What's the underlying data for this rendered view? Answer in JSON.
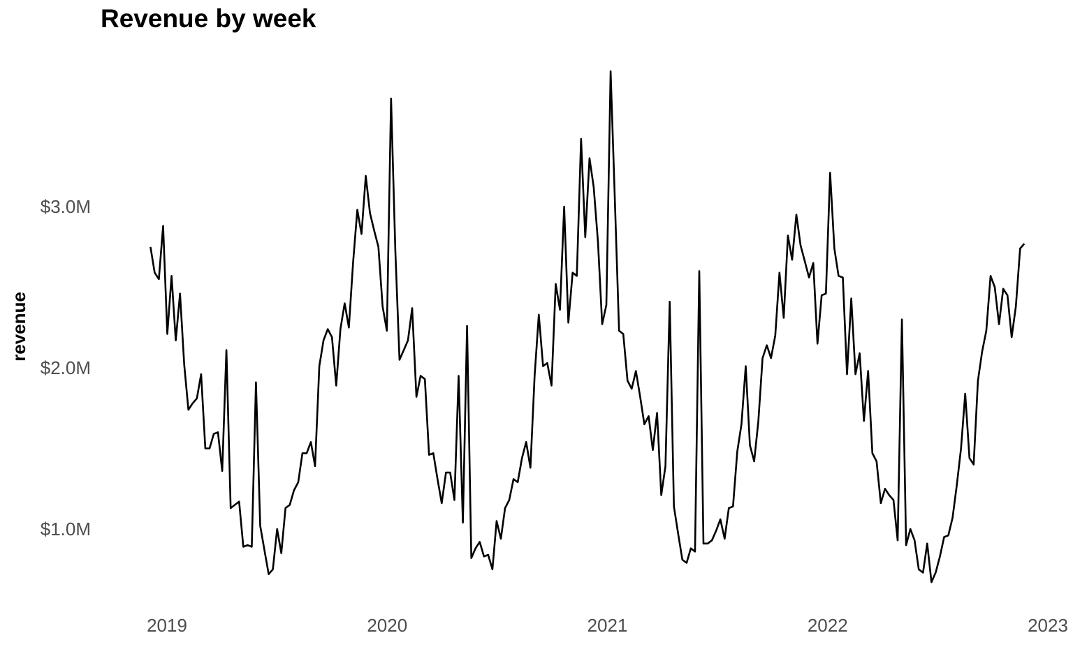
{
  "chart_data": {
    "type": "line",
    "title": "Revenue by week",
    "xlabel": "",
    "ylabel": "revenue",
    "x_ticks": [
      "2019",
      "2020",
      "2021",
      "2022",
      "2023"
    ],
    "y_ticks": [
      "$1.0M",
      "$2.0M",
      "$3.0M"
    ],
    "y_tick_values": [
      1000000,
      2000000,
      3000000
    ],
    "x_tick_values": [
      2019,
      2020,
      2021,
      2022,
      2023
    ],
    "xlim": [
      2018.93,
      2023
    ],
    "ylim": [
      640000,
      3820000
    ],
    "grid": false,
    "line_color": "#000000",
    "series": [
      {
        "x_start": 2018.925,
        "x_step": 0.01917,
        "values": [
          2750000,
          2590000,
          2550000,
          2880000,
          2210000,
          2570000,
          2170000,
          2460000,
          2020000,
          1740000,
          1780000,
          1810000,
          1960000,
          1500000,
          1500000,
          1590000,
          1600000,
          1360000,
          2110000,
          1130000,
          1150000,
          1170000,
          890000,
          900000,
          890000,
          1910000,
          1020000,
          870000,
          720000,
          750000,
          1000000,
          850000,
          1130000,
          1150000,
          1240000,
          1290000,
          1470000,
          1470000,
          1540000,
          1390000,
          2010000,
          2170000,
          2240000,
          2190000,
          1890000,
          2240000,
          2400000,
          2250000,
          2650000,
          2980000,
          2830000,
          3190000,
          2960000,
          2850000,
          2750000,
          2380000,
          2230000,
          3670000,
          2730000,
          2050000,
          2110000,
          2170000,
          2370000,
          1820000,
          1950000,
          1930000,
          1460000,
          1470000,
          1310000,
          1160000,
          1350000,
          1350000,
          1180000,
          1950000,
          1040000,
          2260000,
          820000,
          880000,
          920000,
          830000,
          840000,
          750000,
          1050000,
          940000,
          1130000,
          1180000,
          1310000,
          1290000,
          1440000,
          1540000,
          1380000,
          1950000,
          2330000,
          2010000,
          2030000,
          1890000,
          2520000,
          2360000,
          3000000,
          2280000,
          2590000,
          2570000,
          3420000,
          2810000,
          3300000,
          3120000,
          2780000,
          2270000,
          2390000,
          3840000,
          3050000,
          2230000,
          2210000,
          1920000,
          1870000,
          1980000,
          1820000,
          1650000,
          1700000,
          1490000,
          1720000,
          1210000,
          1390000,
          2410000,
          1140000,
          970000,
          810000,
          790000,
          880000,
          860000,
          2600000,
          910000,
          910000,
          930000,
          990000,
          1060000,
          940000,
          1130000,
          1140000,
          1480000,
          1650000,
          2010000,
          1520000,
          1420000,
          1670000,
          2060000,
          2140000,
          2060000,
          2200000,
          2590000,
          2310000,
          2820000,
          2670000,
          2950000,
          2760000,
          2660000,
          2560000,
          2650000,
          2150000,
          2450000,
          2460000,
          3210000,
          2740000,
          2570000,
          2560000,
          1960000,
          2430000,
          1960000,
          2090000,
          1670000,
          1980000,
          1470000,
          1420000,
          1160000,
          1250000,
          1210000,
          1180000,
          930000,
          2300000,
          900000,
          1000000,
          930000,
          750000,
          730000,
          910000,
          670000,
          730000,
          830000,
          950000,
          960000,
          1070000,
          1270000,
          1500000,
          1840000,
          1440000,
          1400000,
          1920000,
          2100000,
          2230000,
          2570000,
          2500000,
          2270000,
          2490000,
          2450000,
          2190000,
          2380000,
          2740000,
          2770000
        ]
      }
    ]
  }
}
